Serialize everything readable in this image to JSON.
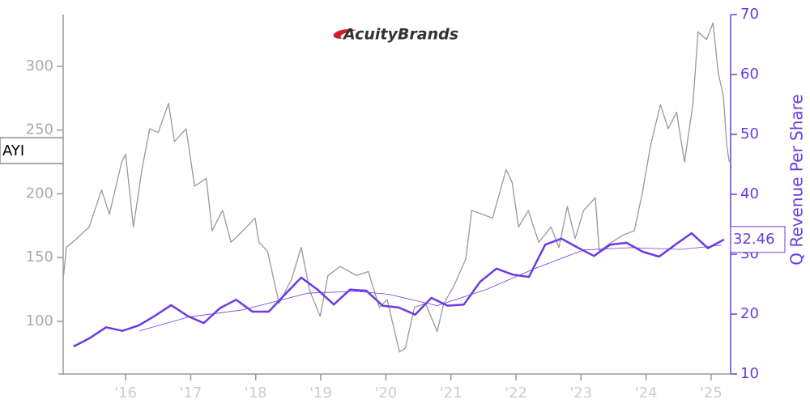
{
  "chart_data": {
    "type": "line",
    "logo": "AcuityBrands",
    "y2label": "Q Revenue Per Share",
    "xlim": [
      2015.04,
      2025.3
    ],
    "xticks": [
      {
        "value": 2016,
        "label": "'16"
      },
      {
        "value": 2017,
        "label": "'17"
      },
      {
        "value": 2018,
        "label": "'18"
      },
      {
        "value": 2019,
        "label": "'19"
      },
      {
        "value": 2020,
        "label": "'20"
      },
      {
        "value": 2021,
        "label": "'21"
      },
      {
        "value": 2022,
        "label": "'22"
      },
      {
        "value": 2023,
        "label": "'23"
      },
      {
        "value": 2024,
        "label": "'24"
      },
      {
        "value": 2025,
        "label": "'25"
      }
    ],
    "ylim": [
      58.7,
      340.6
    ],
    "yticks": [
      100,
      150,
      200,
      250,
      300
    ],
    "y2lim": [
      10,
      70
    ],
    "y2ticks": [
      10,
      20,
      30,
      40,
      50,
      60,
      70
    ],
    "series": [
      {
        "name": "AYI",
        "color": "#999999",
        "axis": "y",
        "x": [
          2015.04,
          2015.09,
          2015.25,
          2015.44,
          2015.63,
          2015.75,
          2015.94,
          2016.0,
          2016.12,
          2016.25,
          2016.37,
          2016.5,
          2016.66,
          2016.75,
          2016.93,
          2017.06,
          2017.24,
          2017.33,
          2017.49,
          2017.62,
          2017.8,
          2017.99,
          2018.05,
          2018.18,
          2018.36,
          2018.55,
          2018.7,
          2018.83,
          2018.99,
          2019.11,
          2019.3,
          2019.55,
          2019.73,
          2019.9,
          2020.02,
          2020.21,
          2020.3,
          2020.44,
          2020.61,
          2020.79,
          2020.89,
          2021.04,
          2021.23,
          2021.32,
          2021.48,
          2021.64,
          2021.85,
          2021.94,
          2022.04,
          2022.19,
          2022.35,
          2022.54,
          2022.66,
          2022.79,
          2022.91,
          2023.04,
          2023.22,
          2023.28,
          2023.47,
          2023.66,
          2023.82,
          2023.94,
          2024.07,
          2024.22,
          2024.34,
          2024.47,
          2024.59,
          2024.72,
          2024.8,
          2024.93,
          2025.03,
          2025.11,
          2025.19,
          2025.24,
          2025.28
        ],
        "values": [
          133,
          158,
          165,
          174,
          203,
          184,
          225,
          231,
          174,
          219,
          251,
          248,
          271,
          241,
          251,
          206,
          212,
          171,
          187,
          162,
          171,
          181,
          162,
          155,
          114,
          133,
          158,
          124,
          104,
          136,
          143,
          136,
          139,
          111,
          117,
          76,
          79,
          111,
          114,
          92,
          114,
          127,
          149,
          187,
          184,
          181,
          219,
          209,
          174,
          187,
          162,
          174,
          158,
          190,
          165,
          187,
          197,
          155,
          162,
          168,
          171,
          200,
          238,
          270,
          251,
          264,
          225,
          270,
          327,
          321,
          334,
          295,
          276,
          238,
          225
        ]
      },
      {
        "color": "#6a3be4",
        "axis": "y2",
        "width": 2.5,
        "x": [
          2015.2,
          2015.45,
          2015.7,
          2015.95,
          2016.2,
          2016.45,
          2016.7,
          2016.95,
          2017.2,
          2017.45,
          2017.7,
          2017.95,
          2018.2,
          2018.45,
          2018.7,
          2018.95,
          2019.2,
          2019.45,
          2019.7,
          2019.95,
          2020.2,
          2020.45,
          2020.7,
          2020.95,
          2021.2,
          2021.45,
          2021.7,
          2021.95,
          2022.2,
          2022.45,
          2022.7,
          2022.95,
          2023.2,
          2023.45,
          2023.7,
          2023.95,
          2024.2,
          2024.45,
          2024.7,
          2024.95,
          2025.2
        ],
        "values": [
          14.6,
          16.0,
          17.8,
          17.2,
          18.1,
          19.7,
          21.5,
          19.7,
          18.5,
          21.0,
          22.4,
          20.4,
          20.4,
          23.3,
          26.1,
          24.1,
          21.6,
          24.1,
          23.9,
          21.4,
          21.1,
          19.9,
          22.7,
          21.4,
          21.6,
          25.4,
          27.6,
          26.6,
          26.2,
          31.6,
          32.6,
          31.1,
          29.7,
          31.6,
          31.9,
          30.4,
          29.6,
          31.6,
          33.5,
          31.0,
          32.46
        ]
      },
      {
        "color": "#6a3be4",
        "axis": "y2",
        "width": 0.8,
        "x": [
          2016.21,
          2016.96,
          2017.8,
          2018.8,
          2019.55,
          2020.05,
          2020.79,
          2021.54,
          2022.29,
          2023.04,
          2023.78,
          2024.53,
          2025.16
        ],
        "values": [
          17.2,
          19.5,
          20.7,
          23.5,
          23.8,
          23.3,
          21.4,
          24.1,
          27.6,
          30.7,
          31.1,
          30.8,
          31.5
        ]
      }
    ]
  }
}
